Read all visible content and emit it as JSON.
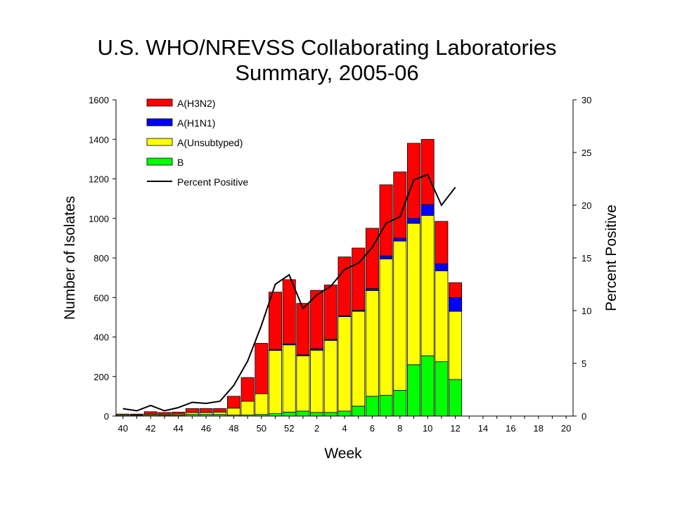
{
  "chart_data": {
    "type": "bar",
    "title": [
      "U.S. WHO/NREVSS Collaborating Laboratories",
      "Summary, 2005-06"
    ],
    "xlabel": "Week",
    "ylabel": "Number of Isolates",
    "y2label": "Percent Positive",
    "ylim": [
      0,
      1600
    ],
    "y2lim": [
      0,
      30
    ],
    "yticks": [
      0,
      200,
      400,
      600,
      800,
      1000,
      1200,
      1400,
      1600
    ],
    "y2ticks": [
      0,
      5,
      10,
      15,
      20,
      25,
      30
    ],
    "categories": [
      "40",
      "41",
      "42",
      "43",
      "44",
      "45",
      "46",
      "47",
      "48",
      "49",
      "50",
      "51",
      "52",
      "1",
      "2",
      "3",
      "4",
      "5",
      "6",
      "7",
      "8",
      "9",
      "10",
      "11",
      "12",
      "13",
      "14",
      "15",
      "16",
      "17",
      "18",
      "19",
      "20"
    ],
    "x_tick_labels": [
      "40",
      "",
      "42",
      "",
      "44",
      "",
      "46",
      "",
      "48",
      "",
      "50",
      "",
      "52",
      "",
      "2",
      "",
      "4",
      "",
      "6",
      "",
      "8",
      "",
      "10",
      "",
      "12",
      "",
      "14",
      "",
      "16",
      "",
      "18",
      "",
      "20"
    ],
    "stacked": true,
    "legend_position": "top-left",
    "series": [
      {
        "name": "B",
        "color": "#00ff00",
        "values": [
          2,
          2,
          5,
          3,
          4,
          8,
          8,
          8,
          5,
          5,
          8,
          12,
          20,
          25,
          18,
          18,
          25,
          50,
          100,
          105,
          130,
          260,
          305,
          275,
          185,
          null,
          null,
          null,
          null,
          null,
          null,
          null,
          null
        ]
      },
      {
        "name": "A(Unsubtyped)",
        "color": "#ffff00",
        "values": [
          5,
          4,
          5,
          5,
          6,
          10,
          10,
          12,
          35,
          70,
          105,
          320,
          340,
          280,
          315,
          365,
          478,
          480,
          535,
          690,
          755,
          715,
          710,
          460,
          345,
          null,
          null,
          null,
          null,
          null,
          null,
          null,
          null
        ]
      },
      {
        "name": "A(H1N1)",
        "color": "#0000ff",
        "values": [
          0,
          0,
          0,
          0,
          0,
          0,
          0,
          0,
          0,
          0,
          0,
          5,
          5,
          5,
          8,
          5,
          5,
          5,
          10,
          15,
          15,
          25,
          55,
          35,
          70,
          null,
          null,
          null,
          null,
          null,
          null,
          null,
          null
        ]
      },
      {
        "name": "A(H3N2)",
        "color": "#ff0000",
        "values": [
          3,
          4,
          12,
          10,
          10,
          20,
          20,
          18,
          60,
          120,
          255,
          290,
          325,
          260,
          295,
          275,
          297,
          315,
          305,
          360,
          335,
          380,
          330,
          215,
          75,
          null,
          null,
          null,
          null,
          null,
          null,
          null,
          null
        ]
      }
    ],
    "line_series": {
      "name": "Percent Positive",
      "color": "#000000",
      "axis": "right",
      "values": [
        0.7,
        0.5,
        1.0,
        0.5,
        0.8,
        1.3,
        1.2,
        1.4,
        2.9,
        5.2,
        8.6,
        12.5,
        13.4,
        10.2,
        11.5,
        12.3,
        13.9,
        14.5,
        16.0,
        18.3,
        18.9,
        22.4,
        22.9,
        20.0,
        21.7,
        null,
        null,
        null,
        null,
        null,
        null,
        null,
        null
      ]
    },
    "legend": [
      "A(H3N2)",
      "A(H1N1)",
      "A(Unsubtyped)",
      "B",
      "Percent Positive"
    ]
  }
}
